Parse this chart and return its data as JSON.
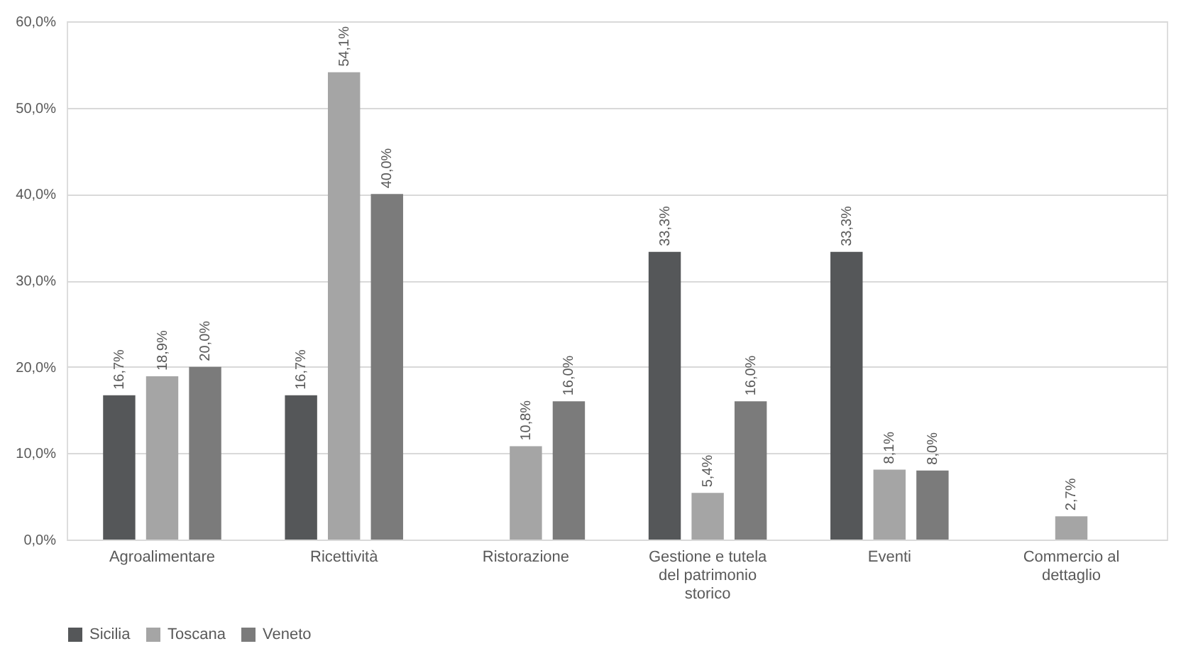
{
  "chart_data": {
    "type": "bar",
    "categories": [
      "Agroalimentare",
      "Ricettività",
      "Ristorazione",
      "Gestione e tutela\ndel patrimonio\nstorico",
      "Eventi",
      "Commercio al\ndettaglio"
    ],
    "series": [
      {
        "name": "Sicilia",
        "color": "#555759",
        "values": [
          16.7,
          16.7,
          null,
          33.3,
          33.3,
          null
        ],
        "value_labels": [
          "16,7%",
          "16,7%",
          null,
          "33,3%",
          "33,3%",
          null
        ]
      },
      {
        "name": "Toscana",
        "color": "#a5a5a5",
        "values": [
          18.9,
          54.1,
          10.8,
          5.4,
          8.1,
          2.7
        ],
        "value_labels": [
          "18,9%",
          "54,1%",
          "10,8%",
          "5,4%",
          "8,1%",
          "2,7%"
        ]
      },
      {
        "name": "Veneto",
        "color": "#7b7b7b",
        "values": [
          20.0,
          40.0,
          16.0,
          16.0,
          8.0,
          null
        ],
        "value_labels": [
          "20,0%",
          "40,0%",
          "16,0%",
          "16,0%",
          "8,0%",
          null
        ]
      }
    ],
    "ylim": [
      0,
      60
    ],
    "yticks": [
      {
        "value": 0,
        "label": "0,0%"
      },
      {
        "value": 10,
        "label": "10,0%"
      },
      {
        "value": 20,
        "label": "20,0%"
      },
      {
        "value": 30,
        "label": "30,0%"
      },
      {
        "value": 40,
        "label": "40,0%"
      },
      {
        "value": 50,
        "label": "50,0%"
      },
      {
        "value": 60,
        "label": "60,0%"
      }
    ],
    "grid": "y",
    "legend": "bottom"
  }
}
